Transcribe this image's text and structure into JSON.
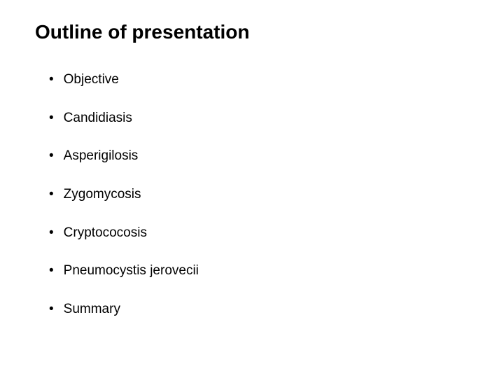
{
  "title": "Outline of presentation",
  "items": [
    {
      "label": "Objective"
    },
    {
      "label": "Candidiasis"
    },
    {
      "label": "Asperigilosis"
    },
    {
      "label": "Zygomycosis"
    },
    {
      "label": "Cryptococosis"
    },
    {
      "label": "Pneumocystis jerovecii"
    },
    {
      "label": "Summary"
    }
  ],
  "bullet_char": "•",
  "styles": {
    "background_color": "#ffffff",
    "text_color": "#000000",
    "title_fontsize": 28,
    "item_fontsize": 19,
    "item_spacing": 30,
    "font_family": "Arial"
  }
}
